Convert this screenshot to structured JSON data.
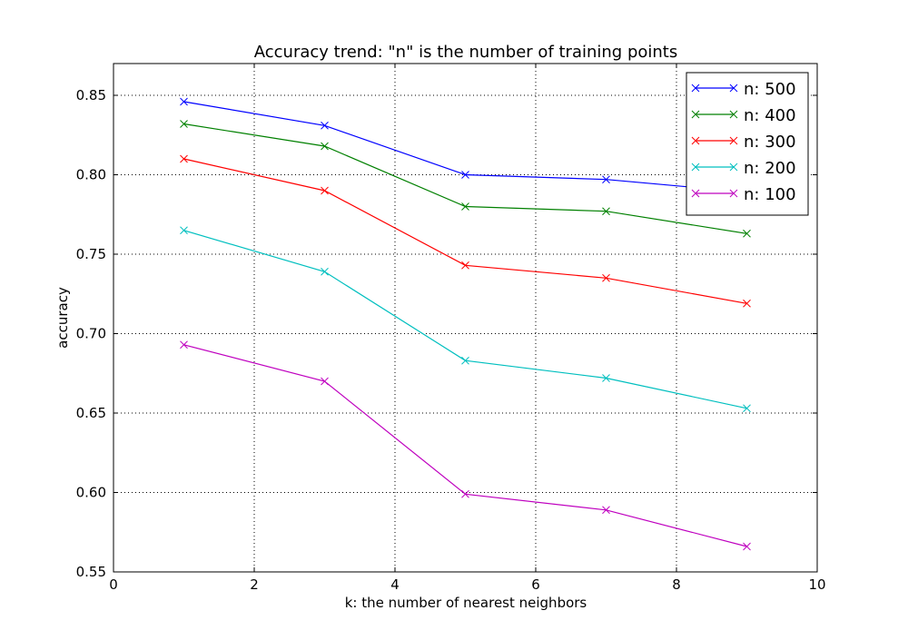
{
  "chart_data": {
    "type": "line",
    "title": "Accuracy trend: \"n\" is the number of training points",
    "xlabel": "k: the number of nearest neighbors",
    "ylabel": "accuracy",
    "xlim": [
      0,
      10
    ],
    "ylim": [
      0.55,
      0.87
    ],
    "xticks": [
      0,
      2,
      4,
      6,
      8,
      10
    ],
    "xtick_labels": [
      "0",
      "2",
      "4",
      "6",
      "8",
      "10"
    ],
    "yticks": [
      0.55,
      0.6,
      0.65,
      0.7,
      0.75,
      0.8,
      0.85
    ],
    "ytick_labels": [
      "0.55",
      "0.60",
      "0.65",
      "0.70",
      "0.75",
      "0.80",
      "0.85"
    ],
    "grid": true,
    "legend_position": "top-right",
    "marker": "x",
    "x": [
      1,
      3,
      5,
      7,
      9
    ],
    "series": [
      {
        "name": "n: 500",
        "color": "#0000ff",
        "values": [
          0.846,
          0.831,
          0.8,
          0.797,
          0.789
        ]
      },
      {
        "name": "n: 400",
        "color": "#008000",
        "values": [
          0.832,
          0.818,
          0.78,
          0.777,
          0.763
        ]
      },
      {
        "name": "n: 300",
        "color": "#ff0000",
        "values": [
          0.81,
          0.79,
          0.743,
          0.735,
          0.719
        ]
      },
      {
        "name": "n: 200",
        "color": "#00bfbf",
        "values": [
          0.765,
          0.739,
          0.683,
          0.672,
          0.653
        ]
      },
      {
        "name": "n: 100",
        "color": "#bf00bf",
        "values": [
          0.693,
          0.67,
          0.599,
          0.589,
          0.566
        ]
      }
    ]
  }
}
